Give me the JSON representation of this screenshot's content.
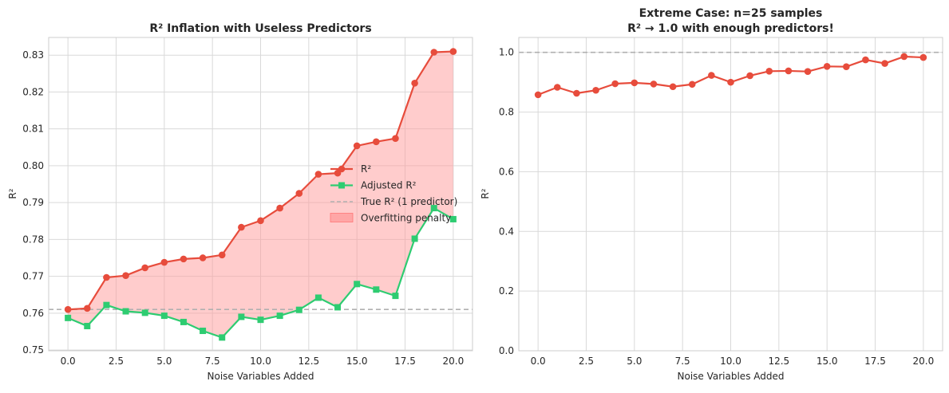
{
  "chart_data": [
    {
      "type": "line",
      "title": "R² Inflation with Useless Predictors",
      "xlabel": "Noise Variables Added",
      "ylabel": "R²",
      "xlim": [
        -1,
        21
      ],
      "ylim": [
        0.7498,
        0.8348
      ],
      "xticks": [
        0,
        2.5,
        5,
        7.5,
        10,
        12.5,
        15,
        17.5,
        20
      ],
      "xtick_labels": [
        "0.0",
        "2.5",
        "5.0",
        "7.5",
        "10.0",
        "12.5",
        "15.0",
        "17.5",
        "20.0"
      ],
      "yticks": [
        0.75,
        0.76,
        0.77,
        0.78,
        0.79,
        0.8,
        0.81,
        0.82,
        0.83
      ],
      "ytick_labels": [
        "0.75",
        "0.76",
        "0.77",
        "0.78",
        "0.79",
        "0.80",
        "0.81",
        "0.82",
        "0.83"
      ],
      "grid": true,
      "legend_position": "center-right",
      "x": [
        0,
        1,
        2,
        3,
        4,
        5,
        6,
        7,
        8,
        9,
        10,
        11,
        12,
        13,
        14,
        15,
        16,
        17,
        18,
        19,
        20
      ],
      "series": [
        {
          "name": "R²",
          "color": "#e74c3c",
          "marker": "circle",
          "values": [
            0.761,
            0.7613,
            0.7697,
            0.7702,
            0.7723,
            0.7738,
            0.7747,
            0.775,
            0.7758,
            0.7833,
            0.7851,
            0.7885,
            0.7925,
            0.7977,
            0.798,
            0.8054,
            0.8065,
            0.8074,
            0.8224,
            0.8308,
            0.831
          ]
        },
        {
          "name": "Adjusted R²",
          "color": "#2ecc71",
          "marker": "square",
          "values": [
            0.7587,
            0.7565,
            0.7622,
            0.7605,
            0.7601,
            0.7593,
            0.7576,
            0.7552,
            0.7534,
            0.759,
            0.7582,
            0.7593,
            0.7609,
            0.7642,
            0.7616,
            0.7679,
            0.7664,
            0.7647,
            0.7802,
            0.7885,
            0.7855
          ]
        }
      ],
      "reference_line": {
        "name": "True R² (1 predictor)",
        "value": 0.761,
        "color": "#b0b0b0",
        "style": "dashed"
      },
      "fill_between": {
        "name": "Overfitting penalty",
        "color": "#ff9999"
      }
    },
    {
      "type": "line",
      "title": "Extreme Case: n=25 samples",
      "subtitle": "R² → 1.0 with enough predictors!",
      "xlabel": "Noise Variables Added",
      "ylabel": "R²",
      "xlim": [
        -1,
        21
      ],
      "ylim": [
        0,
        1.05
      ],
      "xticks": [
        0,
        2.5,
        5,
        7.5,
        10,
        12.5,
        15,
        17.5,
        20
      ],
      "xtick_labels": [
        "0.0",
        "2.5",
        "5.0",
        "7.5",
        "10.0",
        "12.5",
        "15.0",
        "17.5",
        "20.0"
      ],
      "yticks": [
        0,
        0.2,
        0.4,
        0.6,
        0.8,
        1.0
      ],
      "ytick_labels": [
        "0.0",
        "0.2",
        "0.4",
        "0.6",
        "0.8",
        "1.0"
      ],
      "grid": true,
      "x": [
        0,
        1,
        2,
        3,
        4,
        5,
        6,
        7,
        8,
        9,
        10,
        11,
        12,
        13,
        14,
        15,
        16,
        17,
        18,
        19,
        20
      ],
      "series": [
        {
          "color": "#e74c3c",
          "marker": "circle",
          "values": [
            0.858,
            0.883,
            0.863,
            0.873,
            0.895,
            0.898,
            0.894,
            0.885,
            0.893,
            0.923,
            0.9,
            0.922,
            0.937,
            0.938,
            0.936,
            0.953,
            0.952,
            0.975,
            0.963,
            0.986,
            0.983
          ]
        }
      ],
      "reference_line": {
        "value": 1.0,
        "color": "#b0b0b0",
        "style": "dashed"
      }
    }
  ]
}
